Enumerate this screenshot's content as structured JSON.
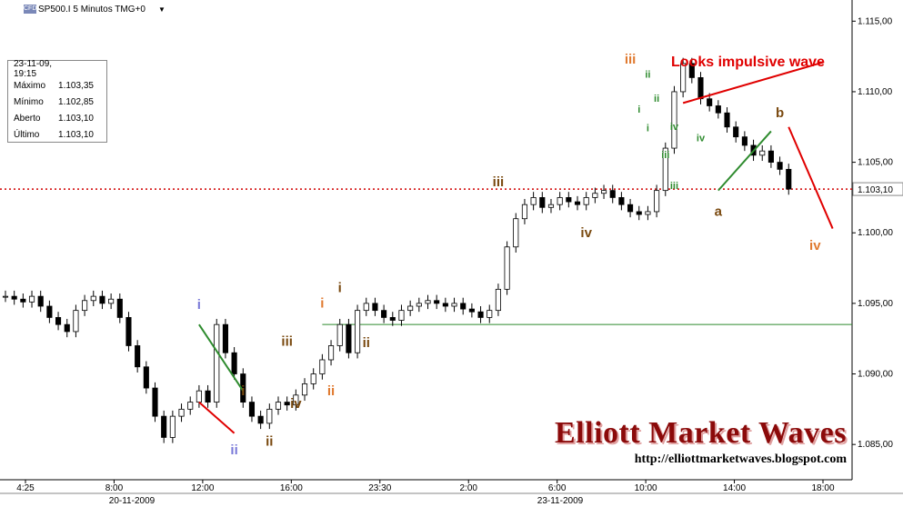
{
  "header": {
    "instrument": "SP500.I 5 Minutos TMG+0",
    "cfd_badge": "CFD"
  },
  "info_panel": {
    "rows": [
      {
        "k": "23-11-09, 19:15",
        "v": ""
      },
      {
        "k": "Máximo",
        "v": "1.103,35"
      },
      {
        "k": "Mínimo",
        "v": "1.102,85"
      },
      {
        "k": "Aberto",
        "v": "1.103,10"
      },
      {
        "k": "Último",
        "v": "1.103,10"
      }
    ]
  },
  "annotation": "Looks impulsive wave",
  "brand": {
    "title": "Elliott Market Waves",
    "url": "http://elliottmarketwaves.blogspot.com"
  },
  "colors": {
    "candle": "#000000",
    "green_line": "#2e8b2e",
    "red_line": "#e00000",
    "orange": "#e07a30",
    "brown": "#7a4a10",
    "blue": "#7a7ad8",
    "green_label": "#2e8b2e",
    "brand": "#8b0a0a"
  },
  "chart_data": {
    "type": "candlestick",
    "ylim": [
      1.0825,
      1.1165
    ],
    "y_ticks": [
      "1.085,00",
      "1.090,00",
      "1.095,00",
      "1.100,00",
      "1.105,00",
      "1.110,00",
      "1.115,00"
    ],
    "y_tick_values": [
      1.085,
      1.09,
      1.095,
      1.1,
      1.105,
      1.11,
      1.115
    ],
    "x_ticks": [
      "4:25",
      "8:00",
      "12:00",
      "16:00",
      "23:30",
      "2:00",
      "6:00",
      "10:00",
      "14:00",
      "18:00"
    ],
    "date_labels": [
      "20-11-2009",
      "23-11-2009"
    ],
    "last_price": 1.1031,
    "last_price_label": "1.103,10",
    "support_level": 1.0935,
    "candles_close": [
      1.0955,
      1.0953,
      1.0951,
      1.0955,
      1.0948,
      1.094,
      1.0935,
      1.093,
      1.0945,
      1.0952,
      1.0955,
      1.095,
      1.0953,
      1.094,
      1.092,
      1.0905,
      1.089,
      1.087,
      1.0855,
      1.087,
      1.0875,
      1.088,
      1.0888,
      1.088,
      1.0935,
      1.0915,
      1.09,
      1.088,
      1.087,
      1.0865,
      1.0875,
      1.088,
      1.0878,
      1.0885,
      1.0893,
      1.09,
      1.091,
      1.092,
      1.0935,
      1.0915,
      1.0945,
      1.095,
      1.0945,
      1.094,
      1.0938,
      1.0945,
      1.0948,
      1.095,
      1.0952,
      1.095,
      1.0948,
      1.095,
      1.0946,
      1.0944,
      1.094,
      1.0945,
      1.096,
      1.099,
      1.101,
      1.102,
      1.1025,
      1.1018,
      1.102,
      1.1025,
      1.1022,
      1.102,
      1.1025,
      1.1028,
      1.103,
      1.1025,
      1.102,
      1.1015,
      1.1013,
      1.1015,
      1.103,
      1.106,
      1.11,
      1.112,
      1.111,
      1.1095,
      1.109,
      1.1085,
      1.1075,
      1.1068,
      1.1062,
      1.1055,
      1.1058,
      1.105,
      1.1045,
      1.1031
    ],
    "wave_labels": [
      {
        "text": "i",
        "color": "blue",
        "v": 1.0946,
        "i": 22
      },
      {
        "text": "ii",
        "color": "blue",
        "v": 1.0843,
        "i": 26
      },
      {
        "text": "i",
        "color": "brown",
        "v": 1.0885,
        "i": 27
      },
      {
        "text": "ii",
        "color": "brown",
        "v": 1.0849,
        "i": 30
      },
      {
        "text": "iii",
        "color": "brown",
        "v": 1.092,
        "i": 32
      },
      {
        "text": "iv",
        "color": "brown",
        "v": 1.0876,
        "i": 33
      },
      {
        "text": "i",
        "color": "orange",
        "v": 1.0947,
        "i": 36
      },
      {
        "text": "ii",
        "color": "orange",
        "v": 1.0885,
        "i": 37
      },
      {
        "text": "i",
        "color": "brown",
        "v": 1.0958,
        "i": 38
      },
      {
        "text": "ii",
        "color": "brown",
        "v": 1.0919,
        "i": 41
      },
      {
        "text": "iii",
        "color": "brown",
        "v": 1.1033,
        "i": 56
      },
      {
        "text": "iv",
        "color": "brown",
        "v": 1.0997,
        "i": 66
      },
      {
        "text": "iii",
        "color": "orange",
        "v": 1.112,
        "i": 71
      },
      {
        "text": "ii",
        "color": "green_label",
        "v": 1.111,
        "i": 73
      },
      {
        "text": "i",
        "color": "green_label",
        "v": 1.1085,
        "i": 72
      },
      {
        "text": "ii",
        "color": "green_label",
        "v": 1.1093,
        "i": 74
      },
      {
        "text": "iv",
        "color": "green_label",
        "v": 1.1073,
        "i": 76
      },
      {
        "text": "i",
        "color": "green_label",
        "v": 1.1072,
        "i": 73
      },
      {
        "text": "iii",
        "color": "green_label",
        "v": 1.1053,
        "i": 75
      },
      {
        "text": "iv",
        "color": "green_label",
        "v": 1.1065,
        "i": 79
      },
      {
        "text": "iii",
        "color": "green_label",
        "v": 1.1031,
        "i": 76
      },
      {
        "text": "a",
        "color": "brown",
        "v": 1.1012,
        "i": 81
      },
      {
        "text": "b",
        "color": "brown",
        "v": 1.1082,
        "i": 88
      },
      {
        "text": "iv",
        "color": "orange",
        "v": 1.0988,
        "i": 92
      }
    ],
    "green_projection": [
      {
        "i": 81,
        "v": 1.103
      },
      {
        "i": 87,
        "v": 1.1072
      }
    ],
    "red_projection": [
      {
        "i": 89,
        "v": 1.1075
      },
      {
        "i": 94,
        "v": 1.1003
      }
    ],
    "wave1_green": [
      {
        "i": 22,
        "v": 1.0935
      },
      {
        "i": 27,
        "v": 1.0888
      }
    ],
    "wave1_red": [
      {
        "i": 22,
        "v": 1.088
      },
      {
        "i": 26,
        "v": 1.0858
      }
    ],
    "impulse_pointer": [
      {
        "i": 77,
        "v": 1.1092
      },
      {
        "i": 93,
        "v": 1.1121
      }
    ]
  }
}
